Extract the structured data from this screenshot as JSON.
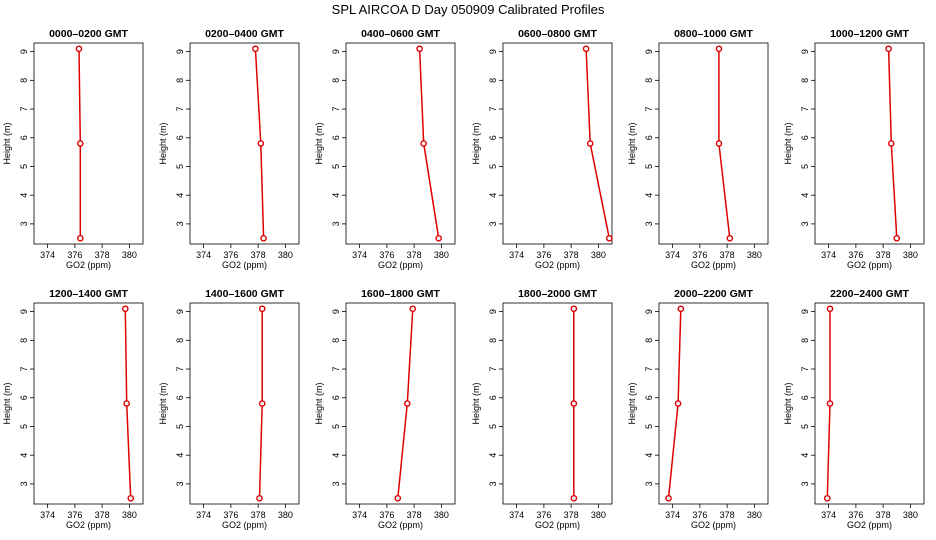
{
  "title": "SPL AIRCOA D  Day 050909  Calibrated Profiles",
  "colors": {
    "profile_line": "#dd0000",
    "marker": "#dd0000",
    "axes": "#000000"
  },
  "chart_data": {
    "type": "line",
    "layout": {
      "rows": 2,
      "cols": 6
    },
    "xlabel": "GO2 (ppm)",
    "ylabel": "Height (m)",
    "xlim": [
      373,
      381
    ],
    "ylim": [
      2.3,
      9.3
    ],
    "xticks": [
      374,
      376,
      378,
      380
    ],
    "yticks": [
      3,
      4,
      5,
      6,
      7,
      8,
      9
    ],
    "marker": "circle",
    "panels": [
      {
        "title": "0000–0200 GMT",
        "x": [
          376.4,
          376.4,
          376.3
        ],
        "y": [
          2.5,
          5.8,
          9.1
        ]
      },
      {
        "title": "0200–0400 GMT",
        "x": [
          378.4,
          378.2,
          377.8
        ],
        "y": [
          2.5,
          5.8,
          9.1
        ]
      },
      {
        "title": "0400–0600 GMT",
        "x": [
          379.8,
          378.7,
          378.4
        ],
        "y": [
          2.5,
          5.8,
          9.1
        ]
      },
      {
        "title": "0600–0800 GMT",
        "x": [
          380.8,
          379.4,
          379.1
        ],
        "y": [
          2.5,
          5.8,
          9.1
        ]
      },
      {
        "title": "0800–1000 GMT",
        "x": [
          378.2,
          377.4,
          377.4
        ],
        "y": [
          2.5,
          5.8,
          9.1
        ]
      },
      {
        "title": "1000–1200 GMT",
        "x": [
          379.0,
          378.6,
          378.4
        ],
        "y": [
          2.5,
          5.8,
          9.1
        ]
      },
      {
        "title": "1200–1400 GMT",
        "x": [
          380.1,
          379.8,
          379.7
        ],
        "y": [
          2.5,
          5.8,
          9.1
        ]
      },
      {
        "title": "1400–1600 GMT",
        "x": [
          378.1,
          378.3,
          378.3
        ],
        "y": [
          2.5,
          5.8,
          9.1
        ]
      },
      {
        "title": "1600–1800 GMT",
        "x": [
          376.8,
          377.5,
          377.9
        ],
        "y": [
          2.5,
          5.8,
          9.1
        ]
      },
      {
        "title": "1800–2000 GMT",
        "x": [
          378.2,
          378.2,
          378.2
        ],
        "y": [
          2.5,
          5.8,
          9.1
        ]
      },
      {
        "title": "2000–2200 GMT",
        "x": [
          373.7,
          374.4,
          374.6
        ],
        "y": [
          2.5,
          5.8,
          9.1
        ]
      },
      {
        "title": "2200–2400 GMT",
        "x": [
          373.9,
          374.1,
          374.1
        ],
        "y": [
          2.5,
          5.8,
          9.1
        ]
      }
    ]
  }
}
